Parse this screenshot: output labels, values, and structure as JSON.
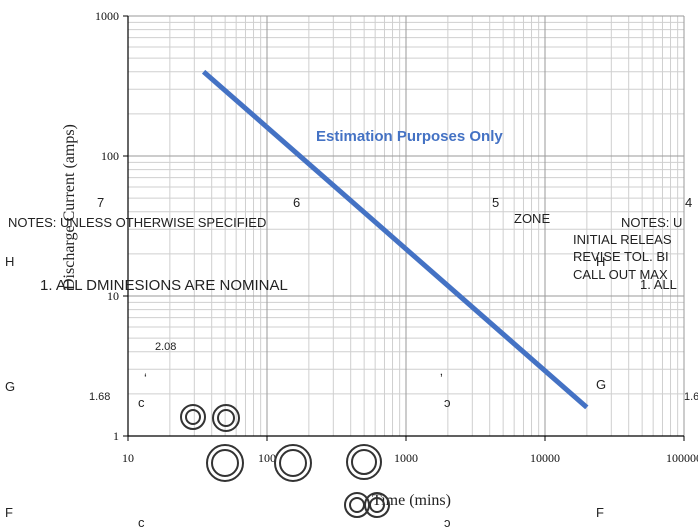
{
  "chart_data": {
    "type": "line",
    "title": "",
    "xlabel": "Time (mins)",
    "ylabel": "Discharge Current (amps)",
    "x_scale": "log",
    "y_scale": "log",
    "xlim": [
      10,
      100000
    ],
    "ylim": [
      1,
      1000
    ],
    "x_ticks": [
      "10",
      "100",
      "1000",
      "10000",
      "100000"
    ],
    "y_ticks": [
      "1",
      "10",
      "100",
      "1000"
    ],
    "grid": true,
    "legend": "none",
    "series": [
      {
        "color": "#4472c4",
        "x": [
          35,
          20000
        ],
        "y": [
          400,
          1.6
        ]
      }
    ],
    "annotation": "Estimation Purposes Only"
  },
  "overlay": {
    "col_7": "7",
    "col_6": "6",
    "col_5": "5",
    "col_4": "4",
    "zone": "ZONE",
    "notes_left": "NOTES:  UNLESS OTHERWISE SPECIFIED",
    "note_1": "1.  ALL DMINESIONS ARE NOMINAL",
    "notes_right": "NOTES:  U",
    "initial_release": "INITIAL RELEAS",
    "revise_tol": "REVISE TOL. BI",
    "call_out": "CALL OUT MAX",
    "note_1_right": "1.  ALL",
    "row_h_left": "H",
    "row_h_mid": "H",
    "row_g_left": "G",
    "row_g_mid": "G",
    "row_f_left": "F",
    "row_f_mid": "F",
    "dim_208": "2.08",
    "dim_168": "1.68",
    "dim_16": "1.6",
    "mark_c1": "c",
    "mark_c2": "c",
    "mark_c3": "ɔ",
    "mark_c4": "ɔ",
    "tick_mark_left": "ʻ",
    "tick_mark_mid": "ʼ"
  }
}
